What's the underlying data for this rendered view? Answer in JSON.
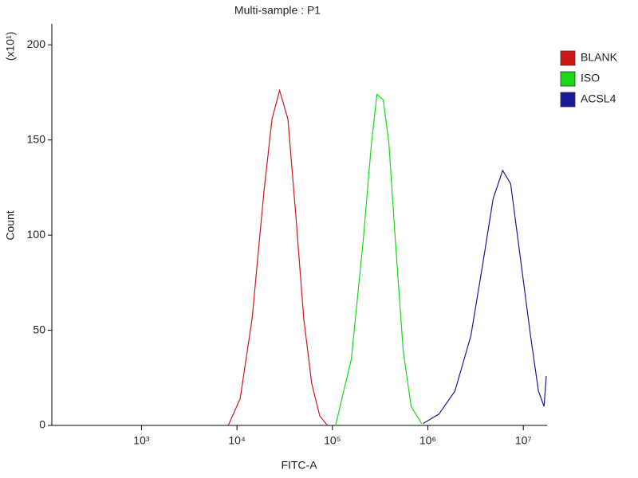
{
  "chart_data": {
    "type": "line",
    "title": "Multi-sample : P1",
    "x_label": "FITC-A",
    "y_label": "Count",
    "y_multiplier": "(x10¹)",
    "x_log": true,
    "xlim": [
      115,
      17400000
    ],
    "xticks": [
      {
        "value": 1000,
        "label": "10³"
      },
      {
        "value": 10000,
        "label": "10⁴"
      },
      {
        "value": 100000,
        "label": "10⁵"
      },
      {
        "value": 1000000,
        "label": "10⁶"
      },
      {
        "value": 10000000,
        "label": "10⁷"
      }
    ],
    "ylim": [
      0,
      211
    ],
    "yticks": [
      0,
      50,
      100,
      150,
      200
    ],
    "legend": "outside-upper-right",
    "series": [
      {
        "name": "BLANK",
        "color": "#d01818",
        "x": [
          8100,
          10800,
          14400,
          19200,
          23300,
          28000,
          34200,
          41400,
          50100,
          60700,
          73600,
          89100
        ],
        "values": [
          0,
          14,
          56,
          123,
          161,
          176,
          161,
          110,
          56,
          22,
          5,
          0
        ]
      },
      {
        "name": "ISO",
        "color": "#18d818",
        "x": [
          108000,
          158000,
          211000,
          256000,
          293000,
          341000,
          391000,
          455000,
          552000,
          668000,
          858000
        ],
        "values": [
          0,
          35,
          98,
          148,
          174,
          171,
          148,
          98,
          39,
          10,
          1
        ]
      },
      {
        "name": "ACSL4",
        "color": "#1a1a9a",
        "x": [
          891000,
          1310000,
          1920000,
          2820000,
          3760000,
          4820000,
          6070000,
          7360000,
          9260000,
          11900000,
          14400000,
          16500000,
          17400000
        ],
        "values": [
          1,
          6,
          18,
          47,
          85,
          119,
          134,
          127,
          89,
          47,
          18,
          10,
          26
        ]
      }
    ]
  }
}
